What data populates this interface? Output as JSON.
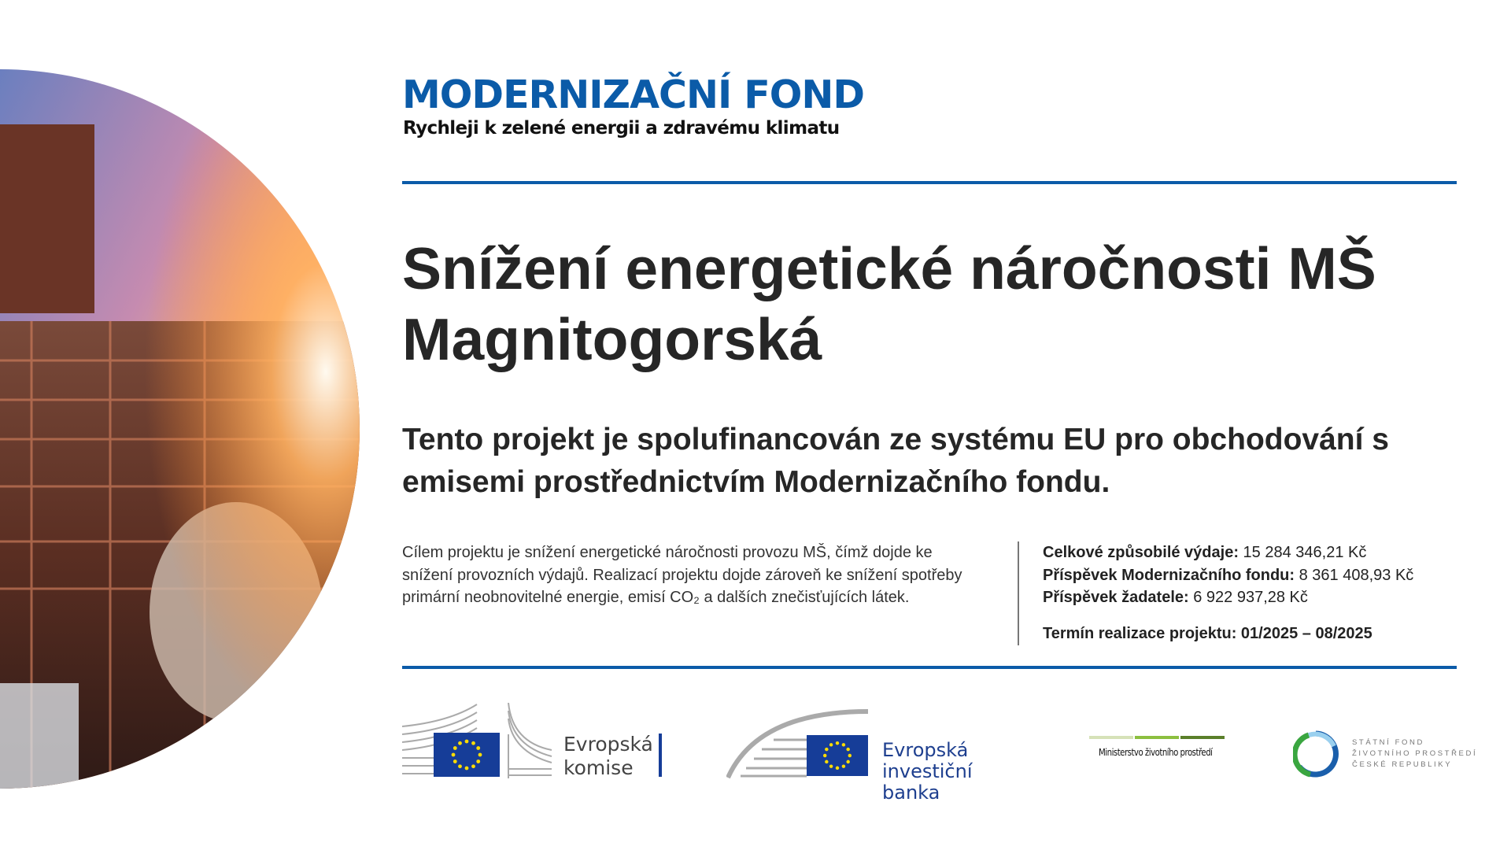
{
  "brand": {
    "title": "MODERNIZAČNÍ FOND",
    "tagline": "Rychleji k zelené energii a zdravému klimatu",
    "color": "#0b5ba8"
  },
  "project": {
    "title": "Snížení energetické náročnosti MŠ Magnitogorská",
    "funding_statement": "Tento projekt je spolufinancován ze systému EU pro obchodování s emisemi prostřednictvím Modernizačního fondu.",
    "description": "Cílem projektu je snížení energetické náročnosti provozu MŠ, čímž dojde ke snížení provozních výdajů. Realizací projektu dojde zároveň ke snížení spotřeby primární neobnovitelné energie, emisí CO₂ a dalších znečisťujících látek."
  },
  "finance": {
    "items": [
      {
        "label": "Celkové způsobilé výdaje:",
        "value": "15 284 346,21 Kč"
      },
      {
        "label": "Příspěvek Modernizačního fondu:",
        "value": "8 361 408,93 Kč"
      },
      {
        "label": "Příspěvek žadatele:",
        "value": "6 922 937,28 Kč"
      }
    ],
    "term": "Termín realizace projektu: 01/2025 – 08/2025"
  },
  "partners": {
    "ec": {
      "line1": "Evropská",
      "line2": "komise"
    },
    "eib": {
      "line1": "Evropská",
      "line2": "investiční banka"
    },
    "mzp": {
      "name": "Ministerstvo životního prostředí"
    },
    "sfzp": {
      "line1": "STÁTNÍ FOND",
      "line2": "ŽIVOTNÍHO PROSTŘEDÍ",
      "line3": "ČESKÉ REPUBLIKY"
    }
  },
  "icons": {
    "photo": "industrial-plant-photo",
    "eu_flag": "eu-flag-icon"
  }
}
